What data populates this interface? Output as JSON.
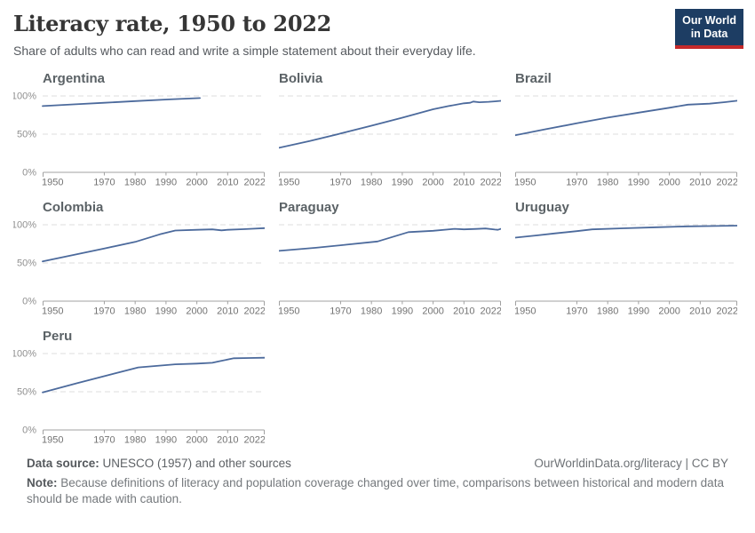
{
  "header": {
    "title": "Literacy rate, 1950 to 2022",
    "subtitle": "Share of adults who can read and write a simple statement about their everyday life.",
    "logo": {
      "line1": "Our World",
      "line2": "in Data"
    }
  },
  "footer": {
    "source_label": "Data source:",
    "source_text": " UNESCO (1957) and other sources",
    "link_text": "OurWorldinData.org/literacy | CC BY",
    "note_label": "Note:",
    "note_text": " Because definitions of literacy and population coverage changed over time, comparisons between historical and modern data should be made with caution."
  },
  "colors": {
    "line": "#4c6a9c",
    "grid": "#dcdcdc",
    "axis": "#a1a1a1",
    "x_tick_text": "#737373",
    "y_tick_text": "#8f8f8f",
    "logo_bg": "#1d3d63",
    "logo_accent": "#c5292a"
  },
  "axes": {
    "xlim": [
      1950,
      2022
    ],
    "ylim": [
      0,
      100
    ],
    "xticks": [
      1950,
      1970,
      1980,
      1990,
      2000,
      2010,
      2022
    ],
    "yticks": [
      {
        "v": 0,
        "label": "0%"
      },
      {
        "v": 50,
        "label": "50%"
      },
      {
        "v": 100,
        "label": "100%"
      }
    ],
    "grid": "dashed-horizontal",
    "y_labels_on_first_column_only": true
  },
  "chart_data": [
    {
      "type": "line",
      "title": "Argentina",
      "xlim": [
        1950,
        2022
      ],
      "ylim": [
        0,
        100
      ],
      "points": [
        [
          1950,
          86.7
        ],
        [
          1960,
          88.9
        ],
        [
          1970,
          91.0
        ],
        [
          1980,
          93.2
        ],
        [
          1991,
          95.5
        ],
        [
          2001,
          97.2
        ]
      ]
    },
    {
      "type": "line",
      "title": "Bolivia",
      "xlim": [
        1950,
        2022
      ],
      "ylim": [
        0,
        100
      ],
      "points": [
        [
          1950,
          32.1
        ],
        [
          1960,
          41.0
        ],
        [
          1970,
          50.8
        ],
        [
          1980,
          61.0
        ],
        [
          1990,
          71.5
        ],
        [
          2000,
          82.5
        ],
        [
          2005,
          86.8
        ],
        [
          2010,
          90.4
        ],
        [
          2012,
          91.0
        ],
        [
          2013,
          92.7
        ],
        [
          2015,
          91.8
        ],
        [
          2018,
          92.3
        ],
        [
          2020,
          92.9
        ],
        [
          2022,
          93.6
        ]
      ]
    },
    {
      "type": "line",
      "title": "Brazil",
      "xlim": [
        1950,
        2022
      ],
      "ylim": [
        0,
        100
      ],
      "points": [
        [
          1950,
          48.5
        ],
        [
          1960,
          56.5
        ],
        [
          1970,
          64.2
        ],
        [
          1980,
          71.6
        ],
        [
          1990,
          78.1
        ],
        [
          2000,
          84.5
        ],
        [
          2006,
          88.6
        ],
        [
          2013,
          89.9
        ],
        [
          2018,
          91.9
        ],
        [
          2022,
          93.7
        ]
      ]
    },
    {
      "type": "line",
      "title": "Colombia",
      "xlim": [
        1950,
        2022
      ],
      "ylim": [
        0,
        100
      ],
      "points": [
        [
          1950,
          52.0
        ],
        [
          1960,
          60.5
        ],
        [
          1970,
          69.0
        ],
        [
          1980,
          77.5
        ],
        [
          1988,
          87.5
        ],
        [
          1993,
          92.5
        ],
        [
          2000,
          93.4
        ],
        [
          2005,
          93.9
        ],
        [
          2008,
          92.7
        ],
        [
          2010,
          93.4
        ],
        [
          2015,
          94.2
        ],
        [
          2018,
          94.8
        ],
        [
          2022,
          95.6
        ]
      ]
    },
    {
      "type": "line",
      "title": "Paraguay",
      "xlim": [
        1950,
        2022
      ],
      "ylim": [
        0,
        100
      ],
      "points": [
        [
          1950,
          65.8
        ],
        [
          1962,
          69.9
        ],
        [
          1972,
          74.0
        ],
        [
          1982,
          78.1
        ],
        [
          1992,
          90.3
        ],
        [
          2000,
          92.1
        ],
        [
          2007,
          94.6
        ],
        [
          2010,
          93.9
        ],
        [
          2014,
          94.5
        ],
        [
          2017,
          95.1
        ],
        [
          2020,
          93.7
        ],
        [
          2021,
          93.4
        ],
        [
          2022,
          94.7
        ]
      ]
    },
    {
      "type": "line",
      "title": "Uruguay",
      "xlim": [
        1950,
        2022
      ],
      "ylim": [
        0,
        100
      ],
      "points": [
        [
          1950,
          83.1
        ],
        [
          1957,
          86.0
        ],
        [
          1963,
          88.7
        ],
        [
          1970,
          91.6
        ],
        [
          1975,
          93.9
        ],
        [
          1985,
          95.4
        ],
        [
          1996,
          96.8
        ],
        [
          2006,
          97.9
        ],
        [
          2015,
          98.4
        ],
        [
          2022,
          98.8
        ]
      ]
    },
    {
      "type": "line",
      "title": "Peru",
      "xlim": [
        1950,
        2022
      ],
      "ylim": [
        0,
        100
      ],
      "points": [
        [
          1950,
          49.2
        ],
        [
          1961,
          61.1
        ],
        [
          1972,
          72.5
        ],
        [
          1981,
          81.9
        ],
        [
          1993,
          85.9
        ],
        [
          2000,
          86.9
        ],
        [
          2005,
          87.9
        ],
        [
          2007,
          89.6
        ],
        [
          2012,
          93.8
        ],
        [
          2017,
          94.2
        ],
        [
          2022,
          94.5
        ]
      ]
    }
  ]
}
